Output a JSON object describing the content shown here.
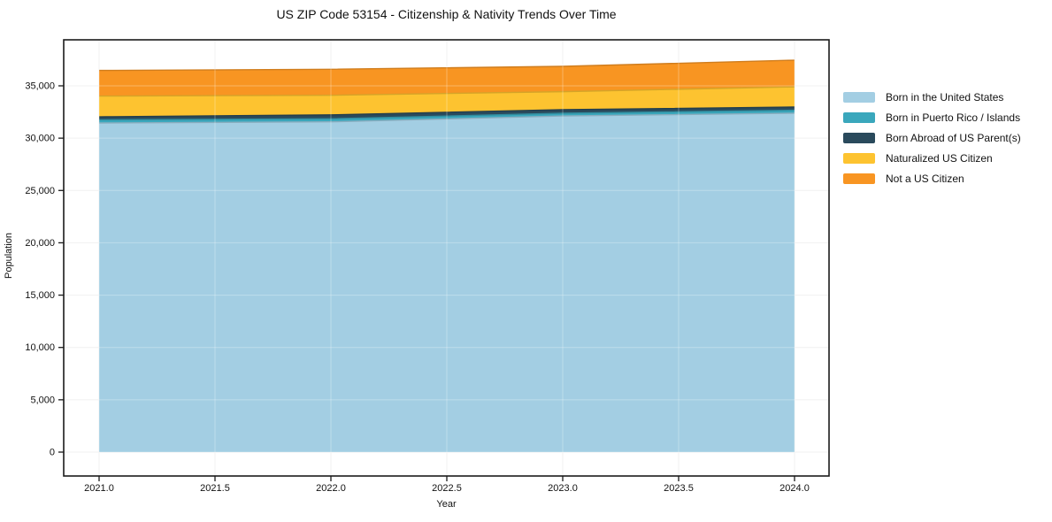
{
  "chart_data": {
    "type": "area",
    "stacked": true,
    "title": "US ZIP Code 53154 - Citizenship & Nativity Trends Over Time",
    "xlabel": "Year",
    "ylabel": "Population",
    "x": [
      2021,
      2022,
      2023,
      2024
    ],
    "x_ticks": [
      {
        "value": 2021.0,
        "label": "2021.0"
      },
      {
        "value": 2021.5,
        "label": "2021.5"
      },
      {
        "value": 2022.0,
        "label": "2022.0"
      },
      {
        "value": 2022.5,
        "label": "2022.5"
      },
      {
        "value": 2023.0,
        "label": "2023.0"
      },
      {
        "value": 2023.5,
        "label": "2023.5"
      },
      {
        "value": 2024.0,
        "label": "2024.0"
      }
    ],
    "y_ticks": [
      {
        "value": 0,
        "label": "0"
      },
      {
        "value": 5000,
        "label": "5,000"
      },
      {
        "value": 10000,
        "label": "10,000"
      },
      {
        "value": 15000,
        "label": "15,000"
      },
      {
        "value": 20000,
        "label": "20,000"
      },
      {
        "value": 25000,
        "label": "25,000"
      },
      {
        "value": 30000,
        "label": "30,000"
      },
      {
        "value": 35000,
        "label": "35,000"
      }
    ],
    "ylim": [
      0,
      39400
    ],
    "xlim": [
      2021,
      2024
    ],
    "grid": true,
    "legend_position": "right",
    "series": [
      {
        "name": "Born in the United States",
        "color": "#a3cee3",
        "values": [
          31450,
          31560,
          32120,
          32380
        ]
      },
      {
        "name": "Born in Puerto Rico / Islands",
        "color": "#3aa7bc",
        "values": [
          300,
          290,
          260,
          290
        ]
      },
      {
        "name": "Born Abroad of US Parent(s)",
        "color": "#2a4a5c",
        "values": [
          290,
          370,
          340,
          300
        ]
      },
      {
        "name": "Naturalized US Citizen",
        "color": "#fdc330",
        "values": [
          1980,
          1880,
          1720,
          1930
        ]
      },
      {
        "name": "Not a US Citizen",
        "color": "#f89522",
        "values": [
          2450,
          2480,
          2420,
          2550
        ]
      }
    ],
    "totals": [
      36470,
      36580,
      36860,
      37450
    ],
    "frame_color": "#1a1a1a",
    "grid_color": "#ededed"
  }
}
